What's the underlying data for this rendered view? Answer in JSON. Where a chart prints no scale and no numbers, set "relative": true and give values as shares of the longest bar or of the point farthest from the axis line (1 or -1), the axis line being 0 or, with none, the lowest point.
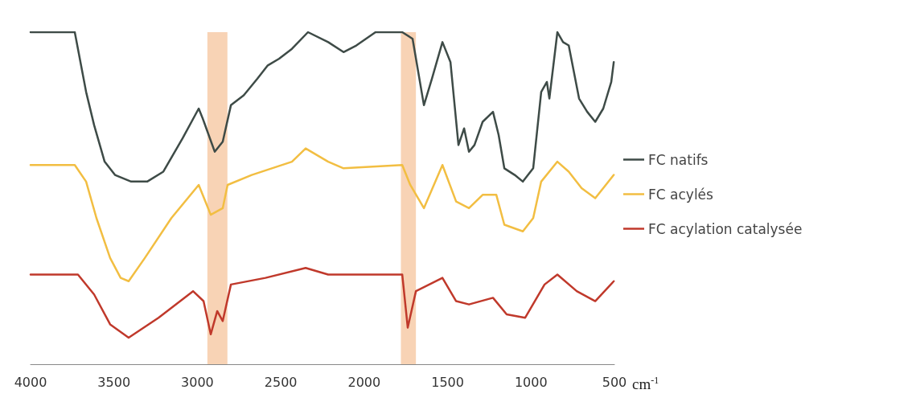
{
  "chart_data": {
    "type": "line",
    "relative": true,
    "xlabel": "cm$^{-1}$",
    "xlim": [
      4000,
      500
    ],
    "xticks": [
      4000,
      3500,
      3000,
      2500,
      2000,
      1500,
      1000,
      500
    ],
    "grid": false,
    "legend": "right",
    "marker": "none",
    "line_style": "solid",
    "bands": [
      {
        "axis": "x",
        "from": 2940,
        "to": 2820,
        "color": "#f7cba8"
      },
      {
        "axis": "x",
        "from": 1780,
        "to": 1690,
        "color": "#f7cba8"
      }
    ],
    "series": [
      {
        "name": "FC natifs",
        "color": "#3e4b47",
        "x": [
          4000,
          3735,
          3667,
          3619,
          3556,
          3494,
          3397,
          3301,
          3204,
          3089,
          2992,
          2968,
          2896,
          2848,
          2799,
          2722,
          2640,
          2578,
          2510,
          2433,
          2337,
          2216,
          2124,
          2047,
          1932,
          1772,
          1710,
          1642,
          1594,
          1531,
          1483,
          1435,
          1401,
          1372,
          1339,
          1290,
          1228,
          1194,
          1160,
          1098,
          1049,
          987,
          939,
          905,
          890,
          842,
          808,
          774,
          712,
          663,
          615,
          567,
          519,
          504
        ],
        "values": [
          1.0,
          1.0,
          0.82,
          0.72,
          0.61,
          0.57,
          0.55,
          0.55,
          0.58,
          0.68,
          0.77,
          0.74,
          0.64,
          0.67,
          0.78,
          0.81,
          0.86,
          0.9,
          0.92,
          0.95,
          1.0,
          0.97,
          0.94,
          0.96,
          1.0,
          1.0,
          0.98,
          0.78,
          0.86,
          0.97,
          0.91,
          0.66,
          0.71,
          0.64,
          0.66,
          0.73,
          0.76,
          0.69,
          0.59,
          0.57,
          0.55,
          0.59,
          0.82,
          0.85,
          0.8,
          1.0,
          0.97,
          0.96,
          0.8,
          0.76,
          0.73,
          0.77,
          0.85,
          0.91
        ]
      },
      {
        "name": "FC acylés",
        "color": "#f2be42",
        "x": [
          4000,
          3735,
          3667,
          3605,
          3523,
          3460,
          3412,
          3315,
          3156,
          2992,
          2920,
          2848,
          2819,
          2674,
          2433,
          2351,
          2216,
          2124,
          1772,
          1724,
          1642,
          1531,
          1449,
          1372,
          1290,
          1208,
          1160,
          1049,
          987,
          939,
          842,
          774,
          697,
          615,
          504
        ],
        "values": [
          0.6,
          0.6,
          0.55,
          0.44,
          0.32,
          0.26,
          0.25,
          0.32,
          0.44,
          0.54,
          0.45,
          0.47,
          0.54,
          0.57,
          0.61,
          0.65,
          0.61,
          0.59,
          0.6,
          0.54,
          0.47,
          0.6,
          0.49,
          0.47,
          0.51,
          0.51,
          0.42,
          0.4,
          0.44,
          0.55,
          0.61,
          0.58,
          0.53,
          0.5,
          0.57
        ]
      },
      {
        "name": "FC acylation catalysée",
        "color": "#c0392b",
        "x": [
          4000,
          3716,
          3619,
          3523,
          3412,
          3233,
          3026,
          2963,
          2920,
          2881,
          2848,
          2799,
          2592,
          2351,
          2216,
          1772,
          1739,
          1690,
          1531,
          1449,
          1372,
          1228,
          1146,
          1035,
          919,
          842,
          726,
          615,
          504
        ],
        "values": [
          0.27,
          0.27,
          0.21,
          0.12,
          0.08,
          0.14,
          0.22,
          0.19,
          0.09,
          0.16,
          0.13,
          0.24,
          0.26,
          0.29,
          0.27,
          0.27,
          0.11,
          0.22,
          0.26,
          0.19,
          0.18,
          0.2,
          0.15,
          0.14,
          0.24,
          0.27,
          0.22,
          0.19,
          0.25
        ]
      }
    ]
  }
}
